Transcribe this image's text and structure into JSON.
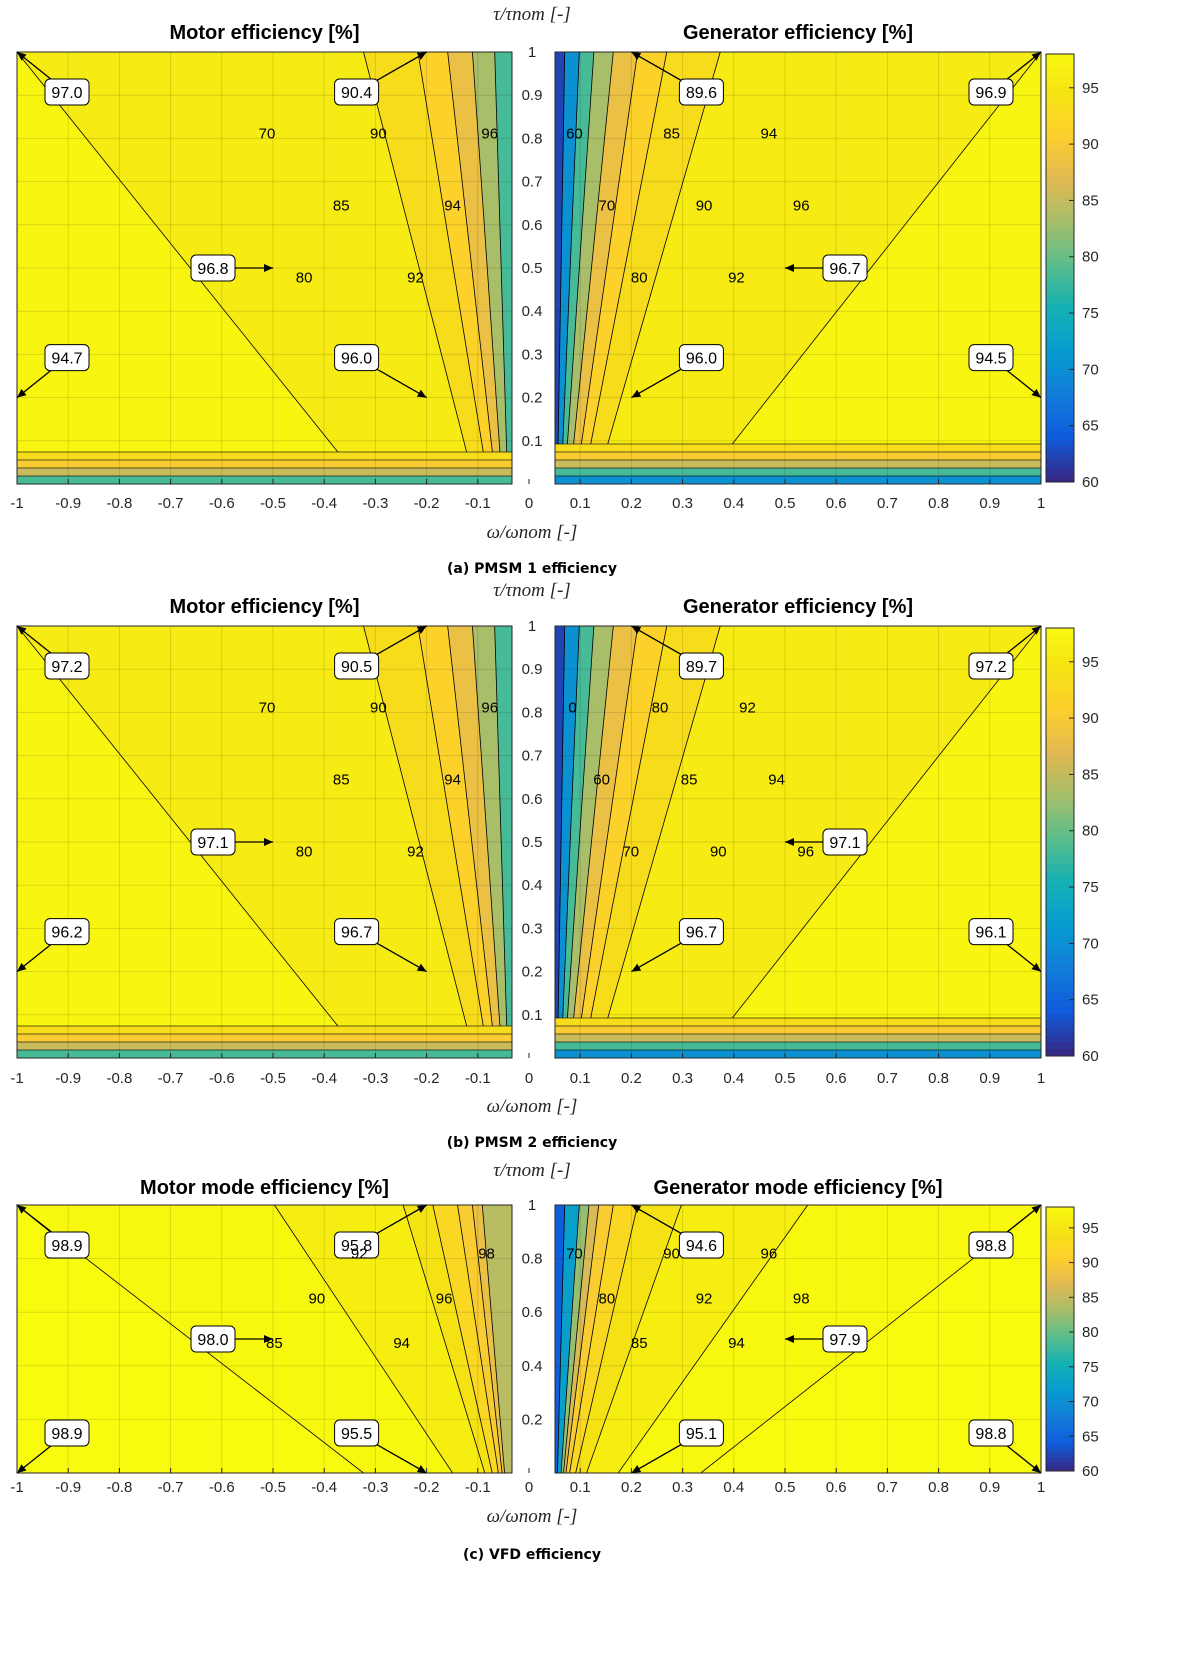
{
  "chart_data": [
    {
      "type": "heatmap",
      "id": "a",
      "caption": "(a) PMSM 1 efficiency",
      "center_axis_label": "τ/τnom [-]",
      "xlabel": "ω/ωnom [-]",
      "xlim": [
        -1,
        1
      ],
      "ylim": [
        0,
        1
      ],
      "x_ticks": [
        "-1",
        "-0.9",
        "-0.8",
        "-0.7",
        "-0.6",
        "-0.5",
        "-0.4",
        "-0.3",
        "-0.2",
        "-0.1",
        "0",
        "0.1",
        "0.2",
        "0.3",
        "0.4",
        "0.5",
        "0.6",
        "0.7",
        "0.8",
        "0.9",
        "1"
      ],
      "y_ticks": [
        "0.1",
        "0.2",
        "0.3",
        "0.4",
        "0.5",
        "0.6",
        "0.7",
        "0.8",
        "0.9",
        "1"
      ],
      "colorbar": {
        "min": 60,
        "max": 98,
        "ticks": [
          "60",
          "65",
          "70",
          "75",
          "80",
          "85",
          "90",
          "95"
        ]
      },
      "panels": [
        {
          "title": "Motor efficiency [%]",
          "side": "left",
          "callouts": [
            {
              "text": "97.0",
              "point": [
                -1,
                1
              ]
            },
            {
              "text": "90.4",
              "point": [
                -0.2,
                1
              ]
            },
            {
              "text": "96.8",
              "point": [
                -0.5,
                0.5
              ]
            },
            {
              "text": "94.7",
              "point": [
                -1,
                0.2
              ]
            },
            {
              "text": "96.0",
              "point": [
                -0.2,
                0.2
              ]
            }
          ],
          "contour_labels": [
            "96",
            "94",
            "92",
            "90",
            "85",
            "80",
            "70"
          ]
        },
        {
          "title": "Generator efficiency [%]",
          "side": "right",
          "callouts": [
            {
              "text": "89.6",
              "point": [
                0.2,
                1
              ]
            },
            {
              "text": "96.9",
              "point": [
                1,
                1
              ]
            },
            {
              "text": "96.7",
              "point": [
                0.5,
                0.5
              ]
            },
            {
              "text": "96.0",
              "point": [
                0.2,
                0.2
              ]
            },
            {
              "text": "94.5",
              "point": [
                1,
                0.2
              ]
            }
          ],
          "contour_labels": [
            "60",
            "70",
            "80",
            "85",
            "90",
            "92",
            "94",
            "96"
          ]
        }
      ]
    },
    {
      "type": "heatmap",
      "id": "b",
      "caption": "(b) PMSM 2 efficiency",
      "center_axis_label": "τ/τnom [-]",
      "xlabel": "ω/ωnom [-]",
      "xlim": [
        -1,
        1
      ],
      "ylim": [
        0,
        1
      ],
      "x_ticks": [
        "-1",
        "-0.9",
        "-0.8",
        "-0.7",
        "-0.6",
        "-0.5",
        "-0.4",
        "-0.3",
        "-0.2",
        "-0.1",
        "0",
        "0.1",
        "0.2",
        "0.3",
        "0.4",
        "0.5",
        "0.6",
        "0.7",
        "0.8",
        "0.9",
        "1"
      ],
      "y_ticks": [
        "0.1",
        "0.2",
        "0.3",
        "0.4",
        "0.5",
        "0.6",
        "0.7",
        "0.8",
        "0.9",
        "1"
      ],
      "colorbar": {
        "min": 60,
        "max": 98,
        "ticks": [
          "60",
          "65",
          "70",
          "75",
          "80",
          "85",
          "90",
          "95"
        ]
      },
      "panels": [
        {
          "title": "Motor efficiency [%]",
          "side": "left",
          "callouts": [
            {
              "text": "97.2",
              "point": [
                -1,
                1
              ]
            },
            {
              "text": "90.5",
              "point": [
                -0.2,
                1
              ]
            },
            {
              "text": "97.1",
              "point": [
                -0.5,
                0.5
              ]
            },
            {
              "text": "96.2",
              "point": [
                -1,
                0.2
              ]
            },
            {
              "text": "96.7",
              "point": [
                -0.2,
                0.2
              ]
            }
          ],
          "contour_labels": [
            "96",
            "94",
            "92",
            "90",
            "85",
            "80",
            "70"
          ]
        },
        {
          "title": "Generator efficiency [%]",
          "side": "right",
          "callouts": [
            {
              "text": "89.7",
              "point": [
                0.2,
                1
              ]
            },
            {
              "text": "97.2",
              "point": [
                1,
                1
              ]
            },
            {
              "text": "97.1",
              "point": [
                0.5,
                0.5
              ]
            },
            {
              "text": "96.7",
              "point": [
                0.2,
                0.2
              ]
            },
            {
              "text": "96.1",
              "point": [
                1,
                0.2
              ]
            }
          ],
          "contour_labels": [
            "0",
            "60",
            "70",
            "80",
            "85",
            "90",
            "92",
            "94",
            "96"
          ]
        }
      ]
    },
    {
      "type": "heatmap",
      "id": "c",
      "caption": "(c) VFD efficiency",
      "center_axis_label": "τ/τnom [-]",
      "xlabel": "ω/ωnom [-]",
      "xlim": [
        -1,
        1
      ],
      "ylim": [
        0,
        1
      ],
      "x_ticks": [
        "-1",
        "-0.9",
        "-0.8",
        "-0.7",
        "-0.6",
        "-0.5",
        "-0.4",
        "-0.3",
        "-0.2",
        "-0.1",
        "0",
        "0.1",
        "0.2",
        "0.3",
        "0.4",
        "0.5",
        "0.6",
        "0.7",
        "0.8",
        "0.9",
        "1"
      ],
      "y_ticks": [
        "0.2",
        "0.4",
        "0.6",
        "0.8",
        "1"
      ],
      "colorbar": {
        "min": 60,
        "max": 98,
        "ticks": [
          "60",
          "65",
          "70",
          "75",
          "80",
          "85",
          "90",
          "95"
        ]
      },
      "panels": [
        {
          "title": "Motor mode efficiency [%]",
          "side": "left",
          "callouts": [
            {
              "text": "98.9",
              "point": [
                -1,
                1
              ]
            },
            {
              "text": "95.8",
              "point": [
                -0.2,
                1
              ]
            },
            {
              "text": "98.0",
              "point": [
                -0.5,
                0.5
              ]
            },
            {
              "text": "98.9",
              "point": [
                -1,
                0
              ]
            },
            {
              "text": "95.5",
              "point": [
                -0.2,
                0
              ]
            }
          ],
          "contour_labels": [
            "98",
            "96",
            "94",
            "92",
            "90",
            "85"
          ]
        },
        {
          "title": "Generator mode efficiency [%]",
          "side": "right",
          "callouts": [
            {
              "text": "94.6",
              "point": [
                0.2,
                1
              ]
            },
            {
              "text": "98.8",
              "point": [
                1,
                1
              ]
            },
            {
              "text": "97.9",
              "point": [
                0.5,
                0.5
              ]
            },
            {
              "text": "95.1",
              "point": [
                0.2,
                0
              ]
            },
            {
              "text": "98.8",
              "point": [
                1,
                0
              ]
            }
          ],
          "contour_labels": [
            "70",
            "80",
            "85",
            "90",
            "92",
            "94",
            "96",
            "98"
          ]
        }
      ]
    }
  ]
}
